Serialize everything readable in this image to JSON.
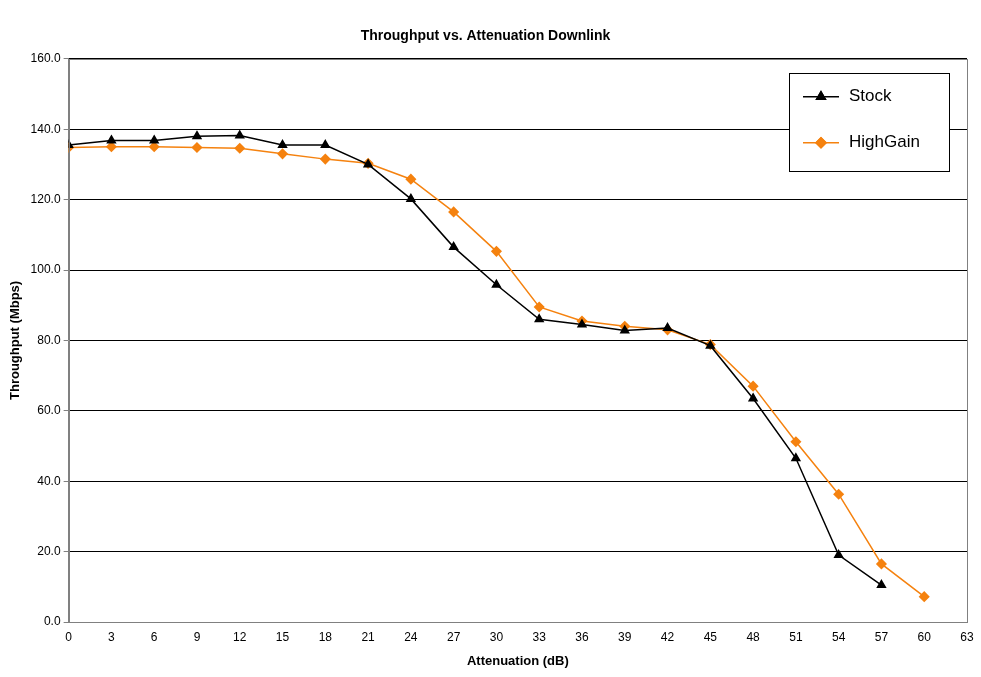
{
  "chart_data": {
    "type": "line",
    "title": "Throughput vs. Attenuation Downlink",
    "x_label": "Attenuation (dB)",
    "y_label": "Throughput (Mbps)",
    "x": [
      0,
      3,
      6,
      9,
      12,
      15,
      18,
      21,
      24,
      27,
      30,
      33,
      36,
      39,
      42,
      45,
      48,
      51,
      54,
      57,
      60
    ],
    "series": [
      {
        "name": "Stock",
        "color": "#000000",
        "marker": "triangle",
        "line_style": "solid",
        "values": [
          135.5,
          136.8,
          136.8,
          138.0,
          138.2,
          135.5,
          135.5,
          130.0,
          120.2,
          106.5,
          95.8,
          86.0,
          84.5,
          82.8,
          83.5,
          78.5,
          63.5,
          46.5,
          19.0,
          10.5,
          null
        ]
      },
      {
        "name": "HighGain",
        "color": "#f5820f",
        "marker": "diamond",
        "line_style": "solid",
        "values": [
          134.8,
          135.0,
          135.0,
          134.8,
          134.6,
          133.0,
          131.5,
          130.3,
          125.8,
          116.5,
          105.3,
          89.5,
          85.5,
          84.0,
          83.0,
          78.8,
          67.0,
          51.2,
          36.3,
          16.5,
          7.2
        ]
      }
    ],
    "xlim": [
      0,
      63
    ],
    "xticks": [
      0,
      3,
      6,
      9,
      12,
      15,
      18,
      21,
      24,
      27,
      30,
      33,
      36,
      39,
      42,
      45,
      48,
      51,
      54,
      57,
      60,
      63
    ],
    "ylim": [
      0,
      160
    ],
    "yticks": [
      {
        "value": 0,
        "label": "0.0"
      },
      {
        "value": 20,
        "label": "20.0"
      },
      {
        "value": 40,
        "label": "40.0"
      },
      {
        "value": 60,
        "label": "60.0"
      },
      {
        "value": 80,
        "label": "80.0"
      },
      {
        "value": 100,
        "label": "100.0"
      },
      {
        "value": 120,
        "label": "120.0"
      },
      {
        "value": 140,
        "label": "140.0"
      },
      {
        "value": 160,
        "label": "160.0"
      }
    ],
    "grid": "y",
    "legend": "upper right"
  }
}
